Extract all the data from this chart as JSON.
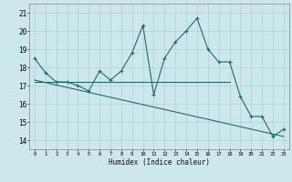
{
  "xlabel": "Humidex (Indice chaleur)",
  "bg_color": "#cde8ec",
  "grid_color": "#b0d0d4",
  "line_color": "#1e6b66",
  "xlim": [
    -0.5,
    23.5
  ],
  "ylim": [
    13.5,
    21.5
  ],
  "xticks": [
    0,
    1,
    2,
    3,
    4,
    5,
    6,
    7,
    8,
    9,
    10,
    11,
    12,
    13,
    14,
    15,
    16,
    17,
    18,
    19,
    20,
    21,
    22,
    23
  ],
  "yticks": [
    14,
    15,
    16,
    17,
    18,
    19,
    20,
    21
  ],
  "line1_x": [
    0,
    1,
    2,
    3,
    4,
    5,
    6,
    7,
    8,
    9,
    10,
    11,
    12,
    13,
    14,
    15,
    16,
    17,
    18,
    19,
    20,
    21,
    22,
    23
  ],
  "line1_y": [
    18.5,
    17.7,
    17.2,
    17.2,
    17.0,
    16.7,
    17.8,
    17.3,
    17.8,
    18.8,
    20.3,
    16.5,
    18.5,
    19.4,
    20.0,
    20.7,
    19.0,
    18.3,
    18.3,
    16.4,
    15.3,
    15.3,
    14.2,
    14.6
  ],
  "line2_x": [
    0,
    18
  ],
  "line2_y": [
    17.2,
    17.2
  ],
  "line3_x": [
    0,
    23
  ],
  "line3_y": [
    17.3,
    14.2
  ]
}
